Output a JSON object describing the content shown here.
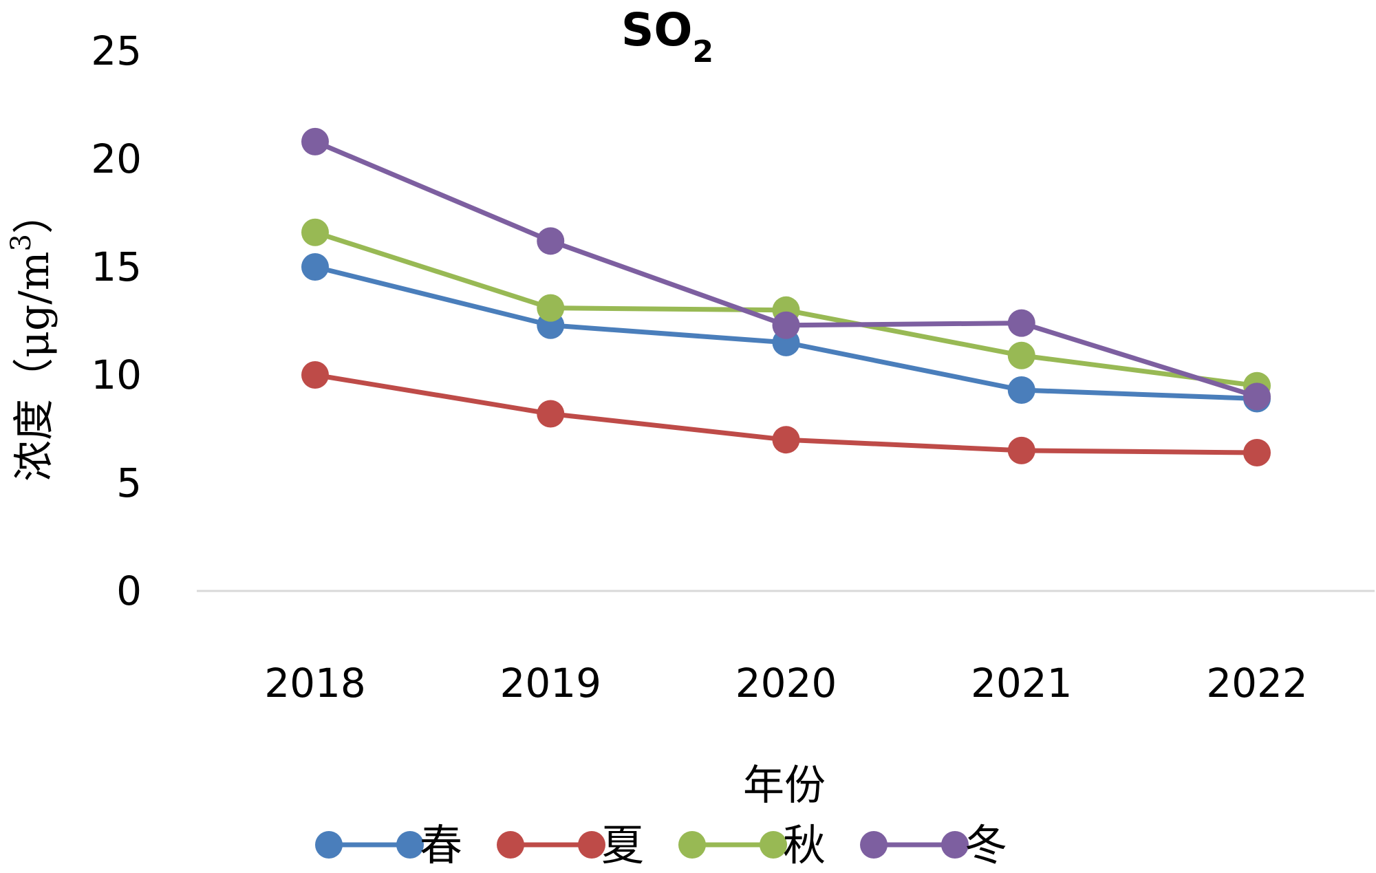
{
  "chart_data": {
    "type": "line",
    "title": "SO",
    "title_subscript": "2",
    "xlabel": "年份",
    "ylabel": "浓度（μg/m",
    "ylabel_superscript": "3",
    "ylabel_suffix": "）",
    "categories": [
      "2018",
      "2019",
      "2020",
      "2021",
      "2022"
    ],
    "ylim": [
      0,
      25
    ],
    "yticks": [
      "0",
      "5",
      "10",
      "15",
      "20",
      "25"
    ],
    "grid": false,
    "legend_position": "bottom",
    "series": [
      {
        "name": "春",
        "color": "#4a7ebb",
        "values": [
          15.0,
          12.3,
          11.5,
          9.3,
          8.9
        ]
      },
      {
        "name": "夏",
        "color": "#be4b48",
        "values": [
          10.0,
          8.2,
          7.0,
          6.5,
          6.4
        ]
      },
      {
        "name": "秋",
        "color": "#98b954",
        "values": [
          16.6,
          13.1,
          13.0,
          10.9,
          9.5
        ]
      },
      {
        "name": "冬",
        "color": "#7d5fa0",
        "values": [
          20.8,
          16.2,
          12.3,
          12.4,
          9.0
        ]
      }
    ]
  }
}
